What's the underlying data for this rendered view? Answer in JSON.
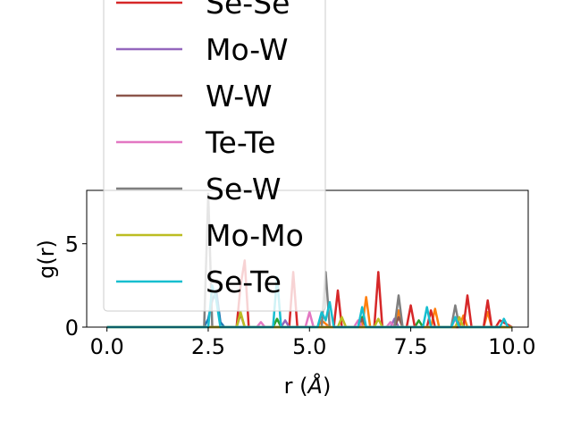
{
  "chart_data": {
    "type": "line",
    "title": "",
    "xlabel": "r (Å)",
    "ylabel": "g(r)",
    "xlim": [
      -0.5,
      10.4
    ],
    "ylim": [
      0,
      8.2
    ],
    "xticks": [
      0.0,
      2.5,
      5.0,
      7.5,
      10.0
    ],
    "xtick_labels": [
      "0.0",
      "2.5",
      "5.0",
      "7.5",
      "10.0"
    ],
    "yticks": [
      0,
      5
    ],
    "ytick_labels": [
      "0",
      "5"
    ],
    "grid": false,
    "legend_placement": "upper-left, overflowing above the axes",
    "series": [
      {
        "name": "",
        "color": "#1f77b4",
        "x": [
          0,
          2.4,
          2.5,
          2.6,
          2.7,
          2.8,
          2.9,
          3.0,
          10.0
        ],
        "y": [
          0,
          0,
          0.5,
          1.6,
          2.2,
          0.3,
          0,
          0,
          0
        ]
      },
      {
        "name": "",
        "color": "#ff7f0e",
        "x": [
          0,
          5.2,
          5.3,
          5.4,
          5.5,
          6.3,
          6.4,
          6.5,
          7.1,
          7.2,
          7.3,
          8.0,
          8.1,
          8.2,
          8.7,
          8.8,
          8.9,
          9.3,
          9.4,
          9.5,
          10.0
        ],
        "y": [
          0,
          0,
          0.4,
          0.2,
          0,
          0,
          1.8,
          0,
          0,
          1.0,
          0,
          0,
          1.1,
          0,
          0,
          0.7,
          0,
          0,
          0.9,
          0,
          0
        ]
      },
      {
        "name": "",
        "color": "#2ca02c",
        "x": [
          0,
          4.1,
          4.2,
          4.3,
          6.2,
          6.3,
          6.4,
          7.6,
          7.7,
          7.8,
          10.0
        ],
        "y": [
          0,
          0,
          0.5,
          0,
          0,
          0.6,
          0,
          0,
          0.4,
          0,
          0
        ]
      },
      {
        "name": "Se-Se",
        "color": "#d62728",
        "x": [
          0,
          3.2,
          3.3,
          3.4,
          3.5,
          4.5,
          4.6,
          4.7,
          4.8,
          5.6,
          5.7,
          5.8,
          6.6,
          6.7,
          6.8,
          7.4,
          7.5,
          7.6,
          7.9,
          8.0,
          8.1,
          8.8,
          8.9,
          9.0,
          9.3,
          9.4,
          9.5,
          9.6,
          9.7,
          10.0
        ],
        "y": [
          0,
          0,
          2.5,
          4.0,
          0,
          0,
          3.3,
          0,
          0,
          0,
          2.2,
          0,
          0,
          3.3,
          0,
          0,
          1.3,
          0,
          0,
          1.0,
          0,
          0,
          1.9,
          0,
          0,
          1.6,
          0,
          0,
          0.4,
          0
        ]
      },
      {
        "name": "Mo-W",
        "color": "#9467bd",
        "x": [
          0,
          4.3,
          4.4,
          4.5,
          7.0,
          7.1,
          7.2,
          10.0
        ],
        "y": [
          0,
          0,
          0.4,
          0,
          0,
          0.5,
          0,
          0
        ]
      },
      {
        "name": "W-W",
        "color": "#8c564b",
        "x": [
          0,
          3.2,
          3.3,
          3.4,
          6.2,
          6.3,
          6.4,
          7.1,
          7.2,
          7.3,
          10.0
        ],
        "y": [
          0,
          0,
          0.8,
          0,
          0,
          0.5,
          0,
          0,
          0.6,
          0,
          0
        ]
      },
      {
        "name": "Te-Te",
        "color": "#e377c2",
        "x": [
          0,
          3.7,
          3.8,
          3.9,
          4.9,
          5.0,
          5.1,
          6.1,
          6.2,
          6.3,
          6.9,
          7.0,
          7.1,
          8.5,
          8.6,
          8.7,
          10.0
        ],
        "y": [
          0,
          0,
          0.3,
          0,
          0,
          0.9,
          0,
          0,
          0.4,
          0,
          0,
          0.3,
          0,
          0,
          0.5,
          0,
          0
        ]
      },
      {
        "name": "Se-W",
        "color": "#7f7f7f",
        "x": [
          0,
          2.4,
          2.5,
          2.6,
          5.3,
          5.4,
          5.5,
          7.1,
          7.2,
          7.3,
          8.5,
          8.6,
          8.7,
          10.0
        ],
        "y": [
          0,
          0,
          8.0,
          0,
          0,
          3.3,
          0,
          0,
          1.9,
          0,
          0,
          1.3,
          0,
          0
        ]
      },
      {
        "name": "Mo-Mo",
        "color": "#bcbd22",
        "x": [
          0,
          3.2,
          3.3,
          3.4,
          5.7,
          5.8,
          5.9,
          6.6,
          6.7,
          6.8,
          8.6,
          8.7,
          8.8,
          10.0
        ],
        "y": [
          0,
          0,
          0.9,
          0,
          0,
          0.6,
          0,
          0,
          0.5,
          0,
          0,
          0.6,
          0,
          0
        ]
      },
      {
        "name": "Se-Te",
        "color": "#17becf",
        "x": [
          0,
          2.5,
          2.6,
          2.7,
          2.8,
          4.1,
          4.2,
          4.3,
          5.2,
          5.3,
          5.4,
          5.5,
          5.6,
          6.2,
          6.3,
          6.4,
          7.8,
          7.9,
          8.0,
          8.5,
          8.6,
          8.7,
          9.7,
          9.8,
          9.9
        ],
        "y": [
          0,
          0,
          2.5,
          1.6,
          0,
          0,
          3.0,
          0,
          0,
          0.9,
          0.4,
          1.5,
          0,
          0,
          1.2,
          0,
          0,
          1.2,
          0,
          0,
          0.6,
          0,
          0,
          0.5,
          0
        ]
      }
    ]
  }
}
